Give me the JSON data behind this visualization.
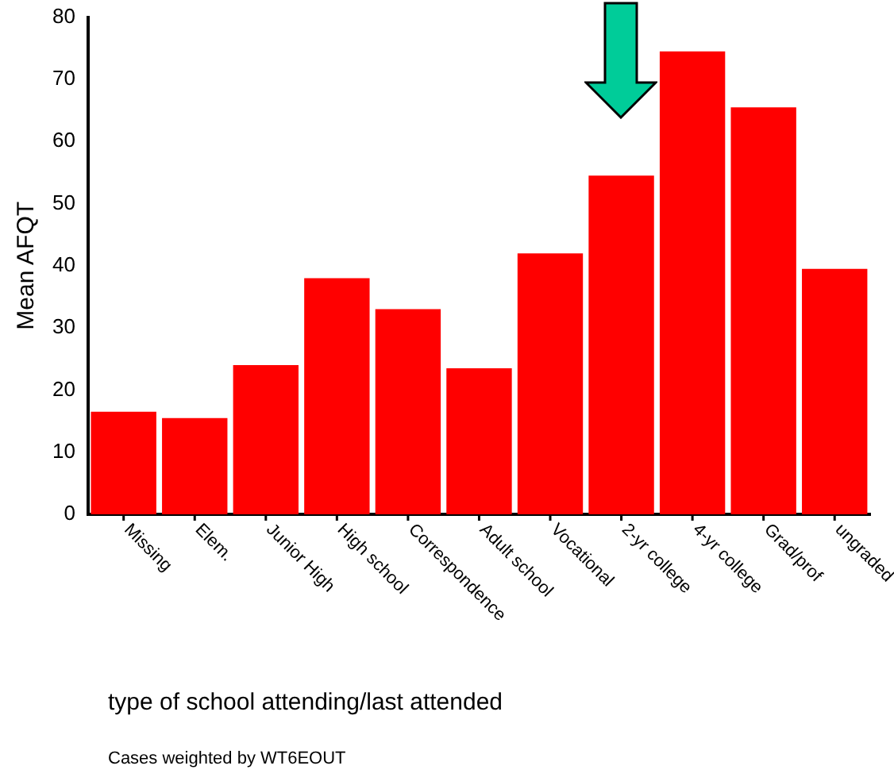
{
  "chart_data": {
    "type": "bar",
    "xlabel": "type of school attending/last attended",
    "ylabel": "Mean AFQT",
    "categories": [
      "Missing",
      "Elem.",
      "Junior High",
      "High school",
      "Correspondence",
      "Adult school",
      "Vocational",
      "2-yr college",
      "4-yr college",
      "Grad/prof",
      "ungraded"
    ],
    "values": [
      16.5,
      15.5,
      24,
      38,
      33,
      23.5,
      42,
      54.5,
      74.5,
      65.5,
      39.5
    ],
    "color": "#ff0000",
    "ylim": [
      0,
      80
    ],
    "yticks": [
      0,
      10,
      20,
      30,
      40,
      50,
      60,
      70,
      80
    ],
    "grid": false,
    "legend": false,
    "annotations": [
      "Cases weighted by WT6EOUT"
    ]
  }
}
